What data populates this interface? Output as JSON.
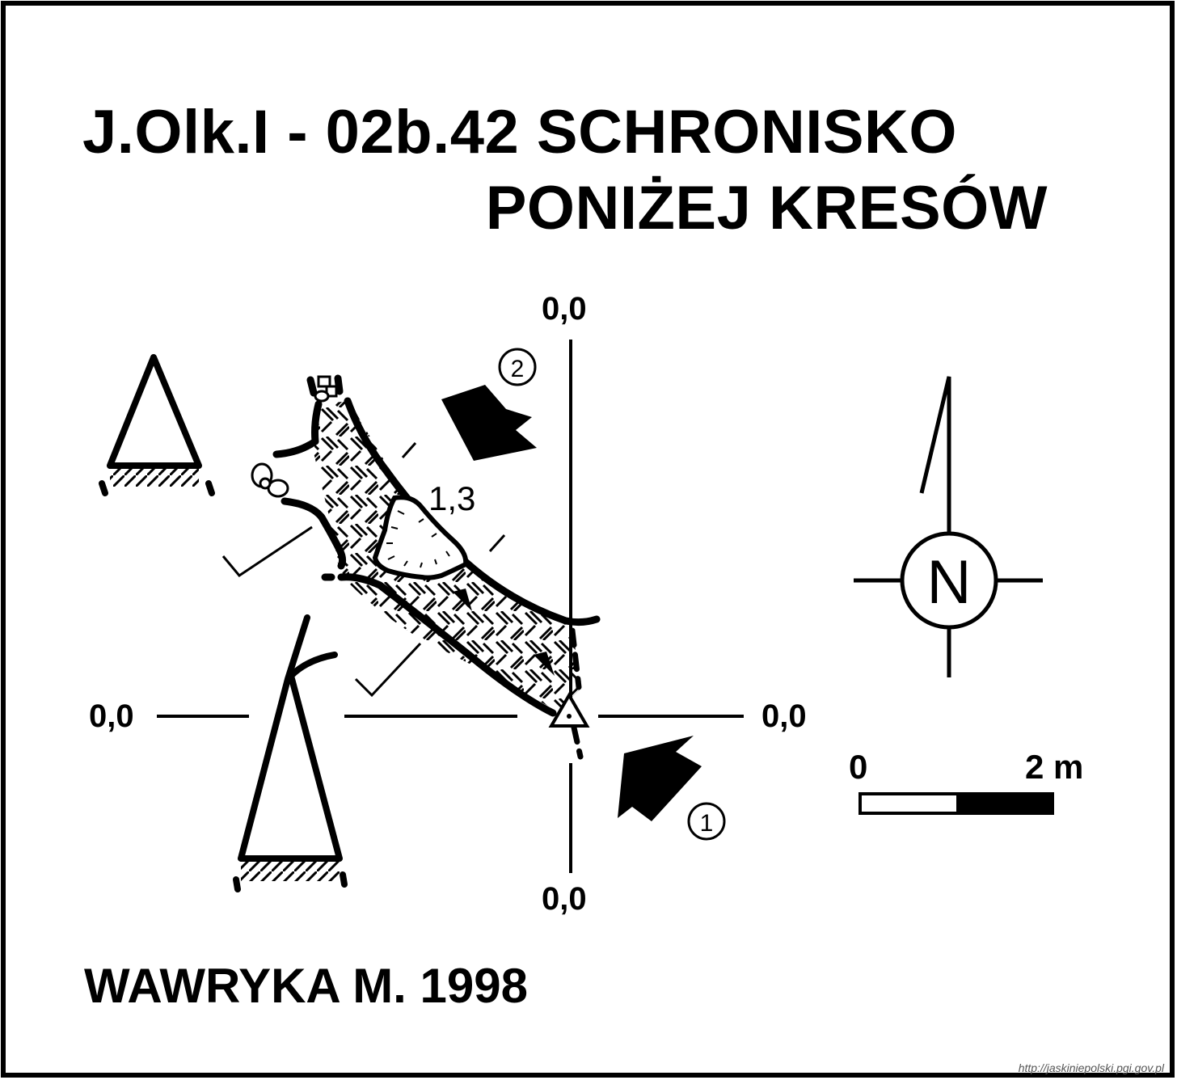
{
  "title": {
    "line1": "J.Olk.I - 02b.42  SCHRONISKO",
    "line2": "PONIŻEJ KRESÓW"
  },
  "author": "WAWRYKA M. 1998",
  "map": {
    "datum_labels": {
      "top": "0,0",
      "left": "0,0",
      "right": "0,0",
      "bottom": "0,0"
    },
    "depth_label": "1,3",
    "entrances": [
      {
        "marker": "①",
        "symbol": "entrance-arrow"
      },
      {
        "marker": "②",
        "symbol": "entrance-arrow"
      }
    ],
    "north_label": "N",
    "scale": {
      "start_label": "0",
      "end_label": "2 m",
      "length_m": 2
    },
    "colors": {
      "ink": "#000000",
      "paper": "#ffffff"
    }
  },
  "source_url": "http://jaskiniepolski.pgi.gov.pl"
}
